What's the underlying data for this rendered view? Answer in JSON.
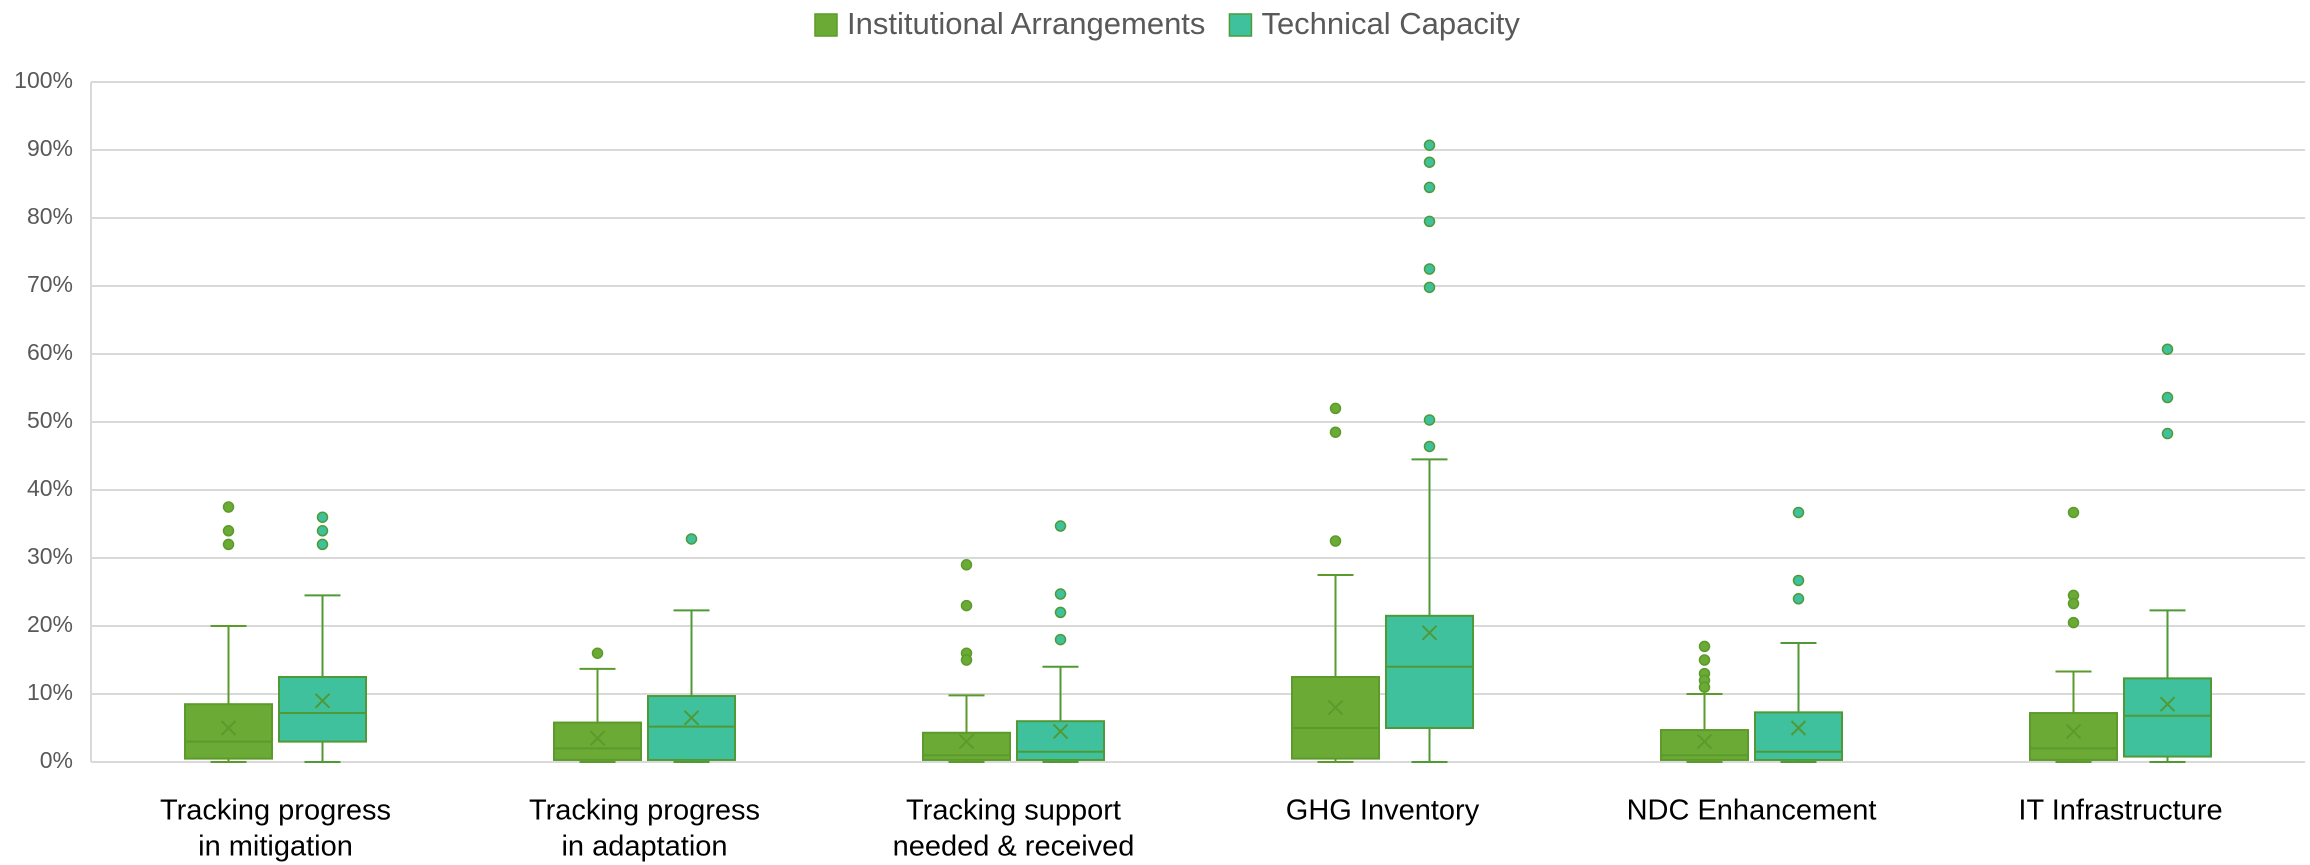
{
  "chart_data": {
    "type": "box",
    "categories": [
      [
        "Tracking progress",
        "in mitigation"
      ],
      [
        "Tracking progress",
        "in adaptation"
      ],
      [
        "Tracking support",
        "needed & received"
      ],
      [
        "GHG Inventory"
      ],
      [
        "NDC Enhancement"
      ],
      [
        "IT Infrastructure"
      ]
    ],
    "ylim": [
      0,
      100
    ],
    "yticks": [
      {
        "value": 0,
        "label": "0%"
      },
      {
        "value": 10,
        "label": "10%"
      },
      {
        "value": 20,
        "label": "20%"
      },
      {
        "value": 30,
        "label": "30%"
      },
      {
        "value": 40,
        "label": "40%"
      },
      {
        "value": 50,
        "label": "50%"
      },
      {
        "value": 60,
        "label": "60%"
      },
      {
        "value": 70,
        "label": "70%"
      },
      {
        "value": 80,
        "label": "80%"
      },
      {
        "value": 90,
        "label": "90%"
      },
      {
        "value": 100,
        "label": "100%"
      }
    ],
    "grid": true,
    "legend": "top",
    "series": [
      {
        "name": "Institutional Arrangements",
        "color": "#6aaa35",
        "stroke": "#5c9a2c",
        "boxes": [
          {
            "min": 0,
            "q1": 0.5,
            "median": 3,
            "q3": 8.5,
            "max": 20,
            "mean": 5,
            "outliers": [
              37.5,
              34,
              32
            ]
          },
          {
            "min": 0,
            "q1": 0.3,
            "median": 2,
            "q3": 5.8,
            "max": 13.7,
            "mean": 3.5,
            "outliers": [
              16
            ]
          },
          {
            "min": 0,
            "q1": 0.3,
            "median": 1,
            "q3": 4.3,
            "max": 9.8,
            "mean": 3,
            "outliers": [
              29,
              23,
              16,
              15
            ]
          },
          {
            "min": 0,
            "q1": 0.5,
            "median": 5,
            "q3": 12.5,
            "max": 27.5,
            "mean": 8,
            "outliers": [
              52,
              48.5,
              32.5
            ]
          },
          {
            "min": 0,
            "q1": 0.3,
            "median": 1,
            "q3": 4.7,
            "max": 10,
            "mean": 3,
            "outliers": [
              17,
              15,
              13,
              12,
              11
            ]
          },
          {
            "min": 0,
            "q1": 0.3,
            "median": 2,
            "q3": 7.2,
            "max": 13.3,
            "mean": 4.5,
            "outliers": [
              36.7,
              24.5,
              23.3,
              20.5
            ]
          }
        ]
      },
      {
        "name": "Technical Capacity",
        "color": "#3fc19d",
        "stroke": "#4f9a36",
        "boxes": [
          {
            "min": 0,
            "q1": 3,
            "median": 7.2,
            "q3": 12.5,
            "max": 24.5,
            "mean": 9,
            "outliers": [
              36,
              34,
              32
            ]
          },
          {
            "min": 0,
            "q1": 0.3,
            "median": 5.2,
            "q3": 9.7,
            "max": 22.3,
            "mean": 6.5,
            "outliers": [
              32.8
            ]
          },
          {
            "min": 0,
            "q1": 0.3,
            "median": 1.5,
            "q3": 6,
            "max": 14,
            "mean": 4.5,
            "outliers": [
              34.7,
              24.7,
              22,
              18
            ]
          },
          {
            "min": 0,
            "q1": 5,
            "median": 14,
            "q3": 21.5,
            "max": 44.5,
            "mean": 19,
            "outliers": [
              90.7,
              88.2,
              84.5,
              79.5,
              72.5,
              69.8,
              50.3,
              46.4
            ]
          },
          {
            "min": 0,
            "q1": 0.3,
            "median": 1.5,
            "q3": 7.3,
            "max": 17.5,
            "mean": 5,
            "outliers": [
              36.7,
              26.7,
              24
            ]
          },
          {
            "min": 0,
            "q1": 0.8,
            "median": 6.8,
            "q3": 12.3,
            "max": 22.3,
            "mean": 8.5,
            "outliers": [
              60.7,
              53.6,
              48.3
            ]
          }
        ]
      }
    ]
  }
}
